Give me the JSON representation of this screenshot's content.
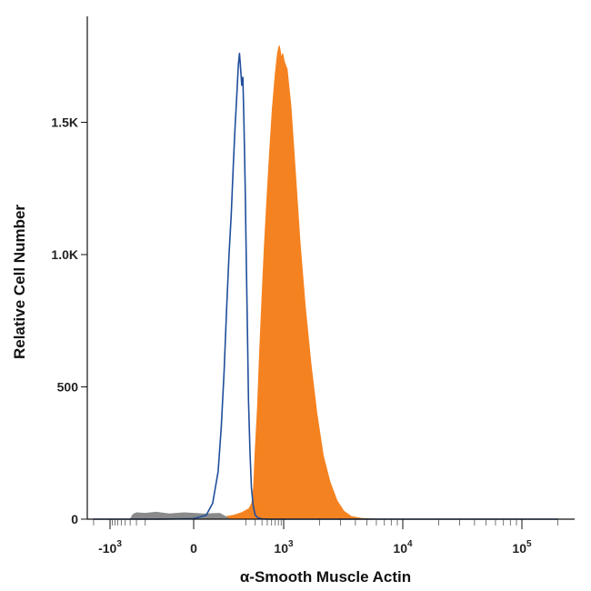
{
  "chart_data": {
    "type": "area",
    "title": "",
    "xlabel": "α-Smooth Muscle Actin",
    "ylabel": "Relative Cell Number",
    "x_scale": "biexponential",
    "xlim": [
      -2000,
      200000
    ],
    "ylim": [
      0,
      1850
    ],
    "x_ticks": [
      {
        "value": -1000,
        "base": "-10",
        "exp": "3"
      },
      {
        "value": 0,
        "base": "0",
        "exp": ""
      },
      {
        "value": 1000,
        "base": "10",
        "exp": "3"
      },
      {
        "value": 10000,
        "base": "10",
        "exp": "4"
      },
      {
        "value": 100000,
        "base": "10",
        "exp": "5"
      }
    ],
    "y_ticks": [
      {
        "value": 0,
        "label": "0"
      },
      {
        "value": 500,
        "label": "500"
      },
      {
        "value": 1000,
        "label": "1.0K"
      },
      {
        "value": 1500,
        "label": "1.5K"
      }
    ],
    "grid": false,
    "series": [
      {
        "name": "",
        "style": "outline",
        "color": "#1f4e9c",
        "points": [
          [
            -2000,
            0
          ],
          [
            -100,
            0
          ],
          [
            0,
            2
          ],
          [
            25,
            15
          ],
          [
            40,
            60
          ],
          [
            55,
            180
          ],
          [
            65,
            350
          ],
          [
            75,
            560
          ],
          [
            85,
            800
          ],
          [
            95,
            1000
          ],
          [
            105,
            1150
          ],
          [
            115,
            1330
          ],
          [
            125,
            1480
          ],
          [
            135,
            1600
          ],
          [
            145,
            1720
          ],
          [
            152,
            1760
          ],
          [
            160,
            1700
          ],
          [
            168,
            1640
          ],
          [
            176,
            1670
          ],
          [
            185,
            1500
          ],
          [
            195,
            1250
          ],
          [
            205,
            950
          ],
          [
            215,
            700
          ],
          [
            225,
            450
          ],
          [
            240,
            250
          ],
          [
            255,
            120
          ],
          [
            275,
            50
          ],
          [
            300,
            15
          ],
          [
            340,
            4
          ],
          [
            400,
            1
          ],
          [
            500,
            0
          ],
          [
            200000,
            0
          ]
        ]
      },
      {
        "name": "",
        "style": "filled",
        "color": "#f58220",
        "points": [
          [
            -2000,
            0
          ],
          [
            0,
            0
          ],
          [
            60,
            5
          ],
          [
            120,
            15
          ],
          [
            170,
            25
          ],
          [
            230,
            40
          ],
          [
            260,
            60
          ],
          [
            280,
            120
          ],
          [
            300,
            260
          ],
          [
            330,
            420
          ],
          [
            360,
            620
          ],
          [
            400,
            840
          ],
          [
            440,
            1020
          ],
          [
            490,
            1200
          ],
          [
            550,
            1380
          ],
          [
            620,
            1550
          ],
          [
            700,
            1680
          ],
          [
            770,
            1760
          ],
          [
            830,
            1790
          ],
          [
            880,
            1760
          ],
          [
            920,
            1740
          ],
          [
            960,
            1760
          ],
          [
            1010,
            1730
          ],
          [
            1070,
            1700
          ],
          [
            1150,
            1560
          ],
          [
            1250,
            1320
          ],
          [
            1370,
            1050
          ],
          [
            1520,
            800
          ],
          [
            1700,
            580
          ],
          [
            1900,
            400
          ],
          [
            2150,
            240
          ],
          [
            2450,
            140
          ],
          [
            2800,
            70
          ],
          [
            3200,
            30
          ],
          [
            3700,
            10
          ],
          [
            4500,
            3
          ],
          [
            6000,
            0
          ],
          [
            200000,
            0
          ]
        ]
      },
      {
        "name": "",
        "style": "filled",
        "color": "#8a8a8a",
        "points": [
          [
            -400,
            0
          ],
          [
            -350,
            18
          ],
          [
            -300,
            24
          ],
          [
            -200,
            22
          ],
          [
            -120,
            26
          ],
          [
            -60,
            20
          ],
          [
            -20,
            24
          ],
          [
            20,
            20
          ],
          [
            60,
            22
          ],
          [
            100,
            0
          ]
        ]
      }
    ]
  }
}
